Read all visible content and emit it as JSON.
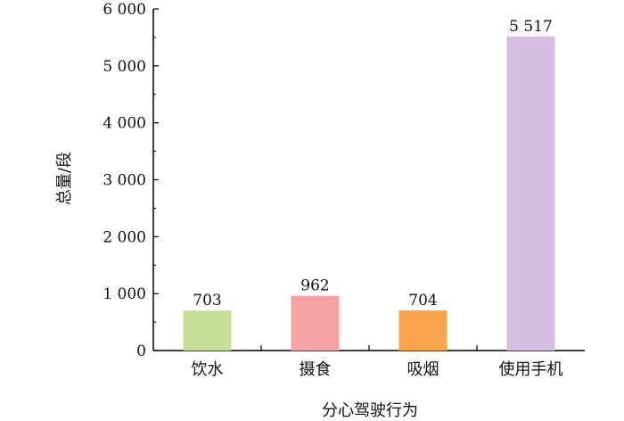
{
  "chart_data": {
    "type": "bar",
    "xlabel": "分心驾驶行为",
    "ylabel": "总量/段",
    "ylim": [
      0,
      6000
    ],
    "yticks": [
      0,
      1000,
      2000,
      3000,
      4000,
      5000,
      6000
    ],
    "ytick_labels": [
      "0",
      "1 000",
      "2 000",
      "3 000",
      "4 000",
      "5 000",
      "6 000"
    ],
    "categories": [
      "饮水",
      "摄食",
      "吸烟",
      "使用手机"
    ],
    "values": [
      703,
      962,
      704,
      5517
    ],
    "value_labels": [
      "703",
      "962",
      "704",
      "5 517"
    ],
    "colors": [
      "#c6df98",
      "#f4a3a3",
      "#f8a54e",
      "#d7bde0"
    ],
    "grid": false,
    "legend": "none"
  }
}
